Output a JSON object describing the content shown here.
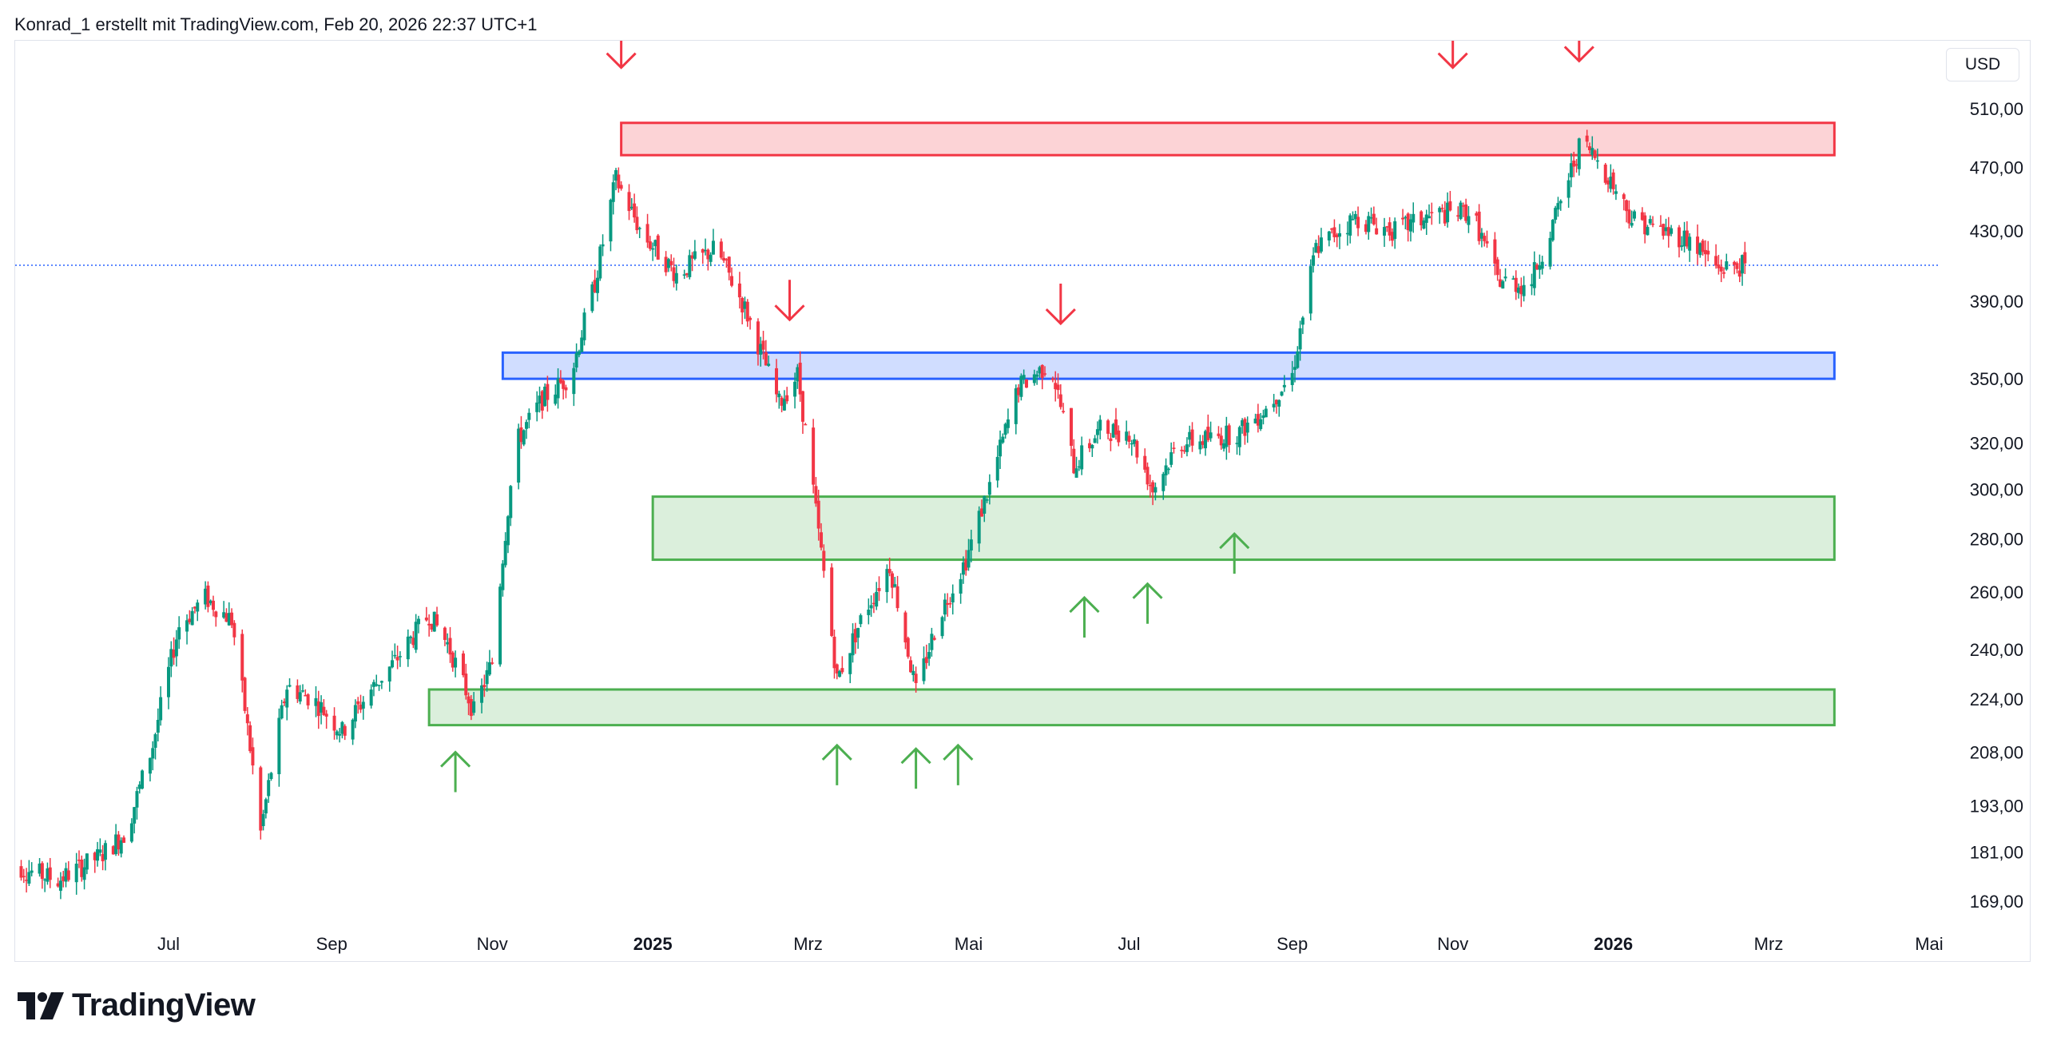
{
  "header": {
    "attribution": "Konrad_1 erstellt mit TradingView.com, Feb 20, 2026 22:37 UTC+1"
  },
  "currency_button": "USD",
  "logo": {
    "text": "TradingView"
  },
  "colors": {
    "up": "#089981",
    "down": "#f23645",
    "resistance": "#f23645",
    "support_blue": "#2962ff",
    "support_green": "#4caf50",
    "price_line": "#2962ff"
  },
  "chart_data": {
    "type": "candlestick",
    "scale": "log",
    "y_ticks": [
      "510,00",
      "470,00",
      "430,00",
      "390,00",
      "350,00",
      "320,00",
      "300,00",
      "280,00",
      "260,00",
      "240,00",
      "224,00",
      "208,00",
      "193,00",
      "181,00",
      "169,00"
    ],
    "y_tick_values": [
      510,
      470,
      430,
      390,
      350,
      320,
      300,
      280,
      260,
      240,
      224,
      208,
      193,
      181,
      169
    ],
    "x_ticks": [
      {
        "label": "Jul",
        "date": "2024-07-01",
        "bold": false
      },
      {
        "label": "Sep",
        "date": "2024-09-01",
        "bold": false
      },
      {
        "label": "Nov",
        "date": "2024-11-01",
        "bold": false
      },
      {
        "label": "2025",
        "date": "2025-01-01",
        "bold": true
      },
      {
        "label": "Mrz",
        "date": "2025-03-01",
        "bold": false
      },
      {
        "label": "Mai",
        "date": "2025-05-01",
        "bold": false
      },
      {
        "label": "Jul",
        "date": "2025-07-01",
        "bold": false
      },
      {
        "label": "Sep",
        "date": "2025-09-01",
        "bold": false
      },
      {
        "label": "Nov",
        "date": "2025-11-01",
        "bold": false
      },
      {
        "label": "2026",
        "date": "2026-01-01",
        "bold": true
      },
      {
        "label": "Mrz",
        "date": "2026-03-01",
        "bold": false
      },
      {
        "label": "Mai",
        "date": "2026-05-01",
        "bold": false
      }
    ],
    "x_range": [
      "2024-05-01",
      "2026-05-08"
    ],
    "y_range": [
      164,
      540
    ],
    "last_price": 410,
    "zones": [
      {
        "kind": "resistance",
        "from": "2024-12-20",
        "to": "2026-03-26",
        "low": 478,
        "high": 500
      },
      {
        "kind": "support_blue",
        "from": "2024-11-05",
        "to": "2026-03-26",
        "low": 350,
        "high": 363
      },
      {
        "kind": "support_green",
        "from": "2025-01-01",
        "to": "2026-03-26",
        "low": 272,
        "high": 297
      },
      {
        "kind": "support_green",
        "from": "2024-10-08",
        "to": "2026-03-26",
        "low": 216,
        "high": 227
      }
    ],
    "arrows_down": [
      {
        "date": "2024-12-20",
        "price": 540
      },
      {
        "date": "2025-02-22",
        "price": 380
      },
      {
        "date": "2025-06-05",
        "price": 378
      },
      {
        "date": "2025-11-01",
        "price": 540
      },
      {
        "date": "2025-12-19",
        "price": 545
      }
    ],
    "arrows_up": [
      {
        "date": "2024-10-18",
        "price": 208
      },
      {
        "date": "2025-03-12",
        "price": 210
      },
      {
        "date": "2025-04-11",
        "price": 209
      },
      {
        "date": "2025-04-27",
        "price": 210
      },
      {
        "date": "2025-06-14",
        "price": 258
      },
      {
        "date": "2025-07-08",
        "price": 263
      },
      {
        "date": "2025-08-10",
        "price": 282
      }
    ],
    "price_path": [
      [
        "2024-05-01",
        178
      ],
      [
        "2024-05-20",
        174
      ],
      [
        "2024-06-05",
        180
      ],
      [
        "2024-06-15",
        186
      ],
      [
        "2024-06-25",
        210
      ],
      [
        "2024-07-05",
        248
      ],
      [
        "2024-07-15",
        258
      ],
      [
        "2024-07-25",
        250
      ],
      [
        "2024-08-05",
        186
      ],
      [
        "2024-08-15",
        228
      ],
      [
        "2024-08-25",
        224
      ],
      [
        "2024-09-05",
        214
      ],
      [
        "2024-09-15",
        226
      ],
      [
        "2024-09-25",
        236
      ],
      [
        "2024-10-08",
        252
      ],
      [
        "2024-10-15",
        242
      ],
      [
        "2024-10-25",
        220
      ],
      [
        "2024-11-01",
        236
      ],
      [
        "2024-11-10",
        320
      ],
      [
        "2024-11-20",
        340
      ],
      [
        "2024-12-01",
        352
      ],
      [
        "2024-12-10",
        400
      ],
      [
        "2024-12-18",
        462
      ],
      [
        "2024-12-28",
        428
      ],
      [
        "2025-01-10",
        405
      ],
      [
        "2025-01-25",
        420
      ],
      [
        "2025-02-05",
        386
      ],
      [
        "2025-02-18",
        338
      ],
      [
        "2025-02-25",
        352
      ],
      [
        "2025-03-05",
        282
      ],
      [
        "2025-03-12",
        230
      ],
      [
        "2025-03-22",
        252
      ],
      [
        "2025-04-01",
        270
      ],
      [
        "2025-04-11",
        226
      ],
      [
        "2025-04-20",
        252
      ],
      [
        "2025-04-30",
        272
      ],
      [
        "2025-05-10",
        305
      ],
      [
        "2025-05-20",
        346
      ],
      [
        "2025-06-01",
        358
      ],
      [
        "2025-06-10",
        310
      ],
      [
        "2025-06-20",
        326
      ],
      [
        "2025-07-01",
        325
      ],
      [
        "2025-07-10",
        300
      ],
      [
        "2025-07-20",
        320
      ],
      [
        "2025-08-01",
        322
      ],
      [
        "2025-08-12",
        325
      ],
      [
        "2025-08-22",
        336
      ],
      [
        "2025-09-01",
        352
      ],
      [
        "2025-09-10",
        420
      ],
      [
        "2025-09-25",
        438
      ],
      [
        "2025-10-10",
        430
      ],
      [
        "2025-10-25",
        440
      ],
      [
        "2025-11-08",
        442
      ],
      [
        "2025-11-18",
        402
      ],
      [
        "2025-11-30",
        398
      ],
      [
        "2025-12-10",
        438
      ],
      [
        "2025-12-20",
        488
      ],
      [
        "2025-12-28",
        470
      ],
      [
        "2026-01-08",
        438
      ],
      [
        "2026-01-20",
        430
      ],
      [
        "2026-01-30",
        425
      ],
      [
        "2026-02-10",
        408
      ],
      [
        "2026-02-20",
        410
      ]
    ]
  }
}
